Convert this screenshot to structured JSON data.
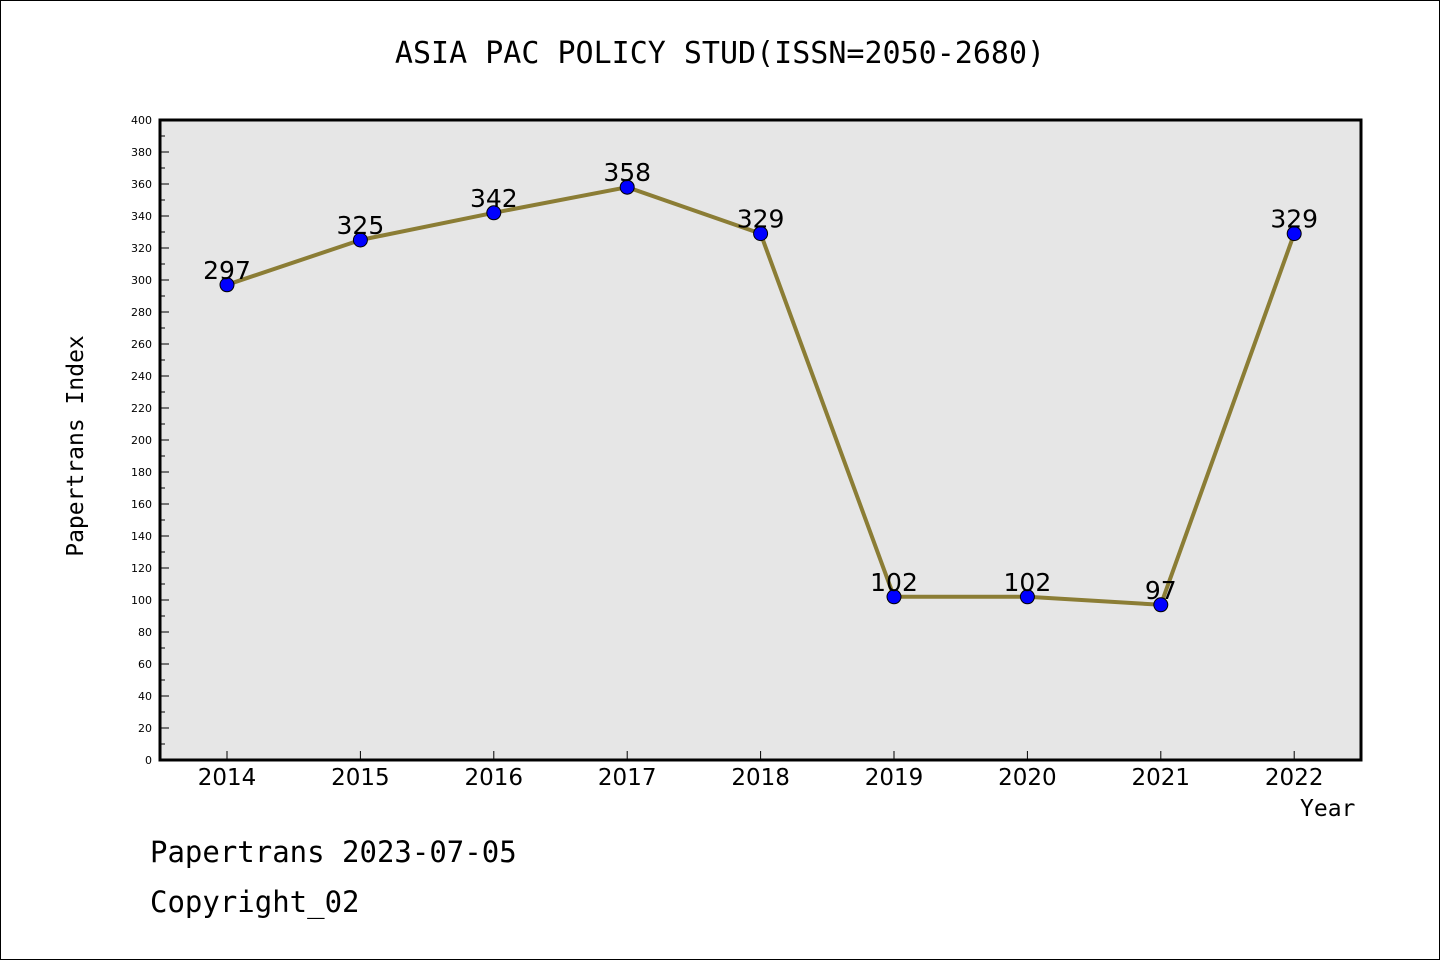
{
  "chart_data": {
    "type": "line",
    "title": "ASIA PAC POLICY STUD(ISSN=2050-2680)",
    "xlabel": "Year",
    "ylabel": "Papertrans Index",
    "categories": [
      "2014",
      "2015",
      "2016",
      "2017",
      "2018",
      "2019",
      "2020",
      "2021",
      "2022"
    ],
    "series": [
      {
        "values": [
          297,
          325,
          342,
          358,
          329,
          102,
          102,
          97,
          329
        ]
      }
    ],
    "ylim": [
      0,
      400
    ],
    "ytick_step": 20,
    "yticks": [
      "0",
      "20",
      "40",
      "60",
      "80",
      "100",
      "120",
      "140",
      "160",
      "180",
      "200",
      "220",
      "240",
      "260",
      "280",
      "300",
      "320",
      "340",
      "360",
      "380",
      "400"
    ],
    "grid": false,
    "data_labels": true,
    "colors": {
      "plot_background": "#e6e6e6",
      "line": "#8b7d35",
      "marker": "#0000ff"
    }
  },
  "footer": {
    "line1": "Papertrans 2023-07-05",
    "line2": "Copyright_02"
  }
}
